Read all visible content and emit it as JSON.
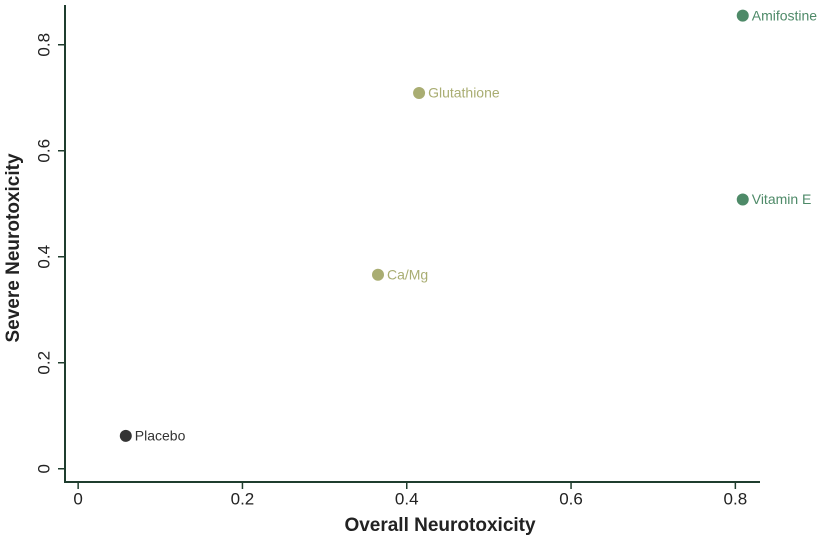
{
  "chart_data": {
    "type": "scatter",
    "x_label": "Overall Neurotoxicity",
    "y_label": "Severe Neurotoxicity",
    "points": [
      {
        "name": "Placebo",
        "x": 0.058,
        "y": 0.062,
        "color": "#333333"
      },
      {
        "name": "Ca/Mg",
        "x": 0.365,
        "y": 0.366,
        "color": "#a9ad72"
      },
      {
        "name": "Glutathione",
        "x": 0.415,
        "y": 0.709,
        "color": "#a9ad72"
      },
      {
        "name": "Amifostine",
        "x": 0.809,
        "y": 0.855,
        "color": "#4e8a68"
      },
      {
        "name": "Vitamin E",
        "x": 0.809,
        "y": 0.508,
        "color": "#4e8a68"
      }
    ],
    "xlim": [
      -0.016,
      0.83
    ],
    "xticks": [
      0,
      0.2,
      0.4,
      0.6,
      0.8
    ],
    "ylim": [
      -0.025,
      0.875
    ],
    "yticks": [
      0,
      0.2,
      0.4,
      0.6,
      0.8
    ],
    "axis_color": "#1f3d2e"
  }
}
